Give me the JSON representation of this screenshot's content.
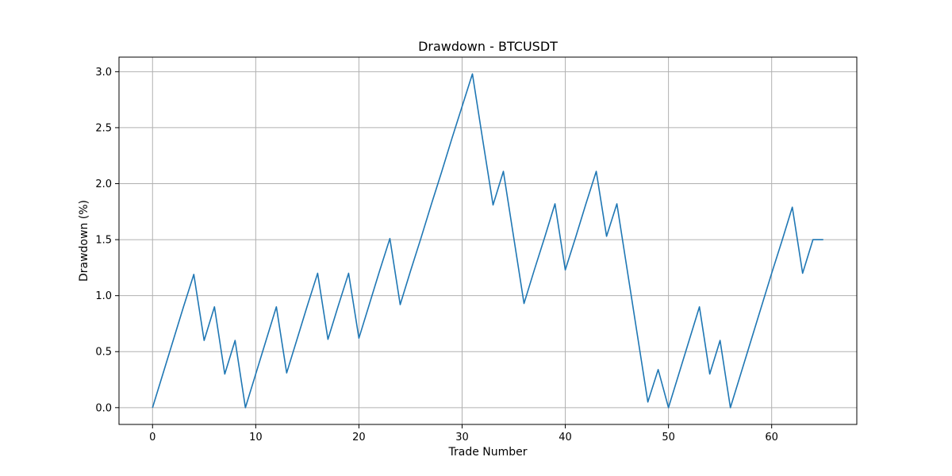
{
  "chart_data": {
    "type": "line",
    "title": "Drawdown - BTCUSDT",
    "xlabel": "Trade Number",
    "ylabel": "Drawdown (%)",
    "xlim": [
      -3.25,
      68.25
    ],
    "ylim": [
      -0.15,
      3.13
    ],
    "xticks": [
      0,
      10,
      20,
      30,
      40,
      50,
      60
    ],
    "yticks": [
      0.0,
      0.5,
      1.0,
      1.5,
      2.0,
      2.5,
      3.0
    ],
    "xtick_labels": [
      "0",
      "10",
      "20",
      "30",
      "40",
      "50",
      "60"
    ],
    "ytick_labels": [
      "0.0",
      "0.5",
      "1.0",
      "1.5",
      "2.0",
      "2.5",
      "3.0"
    ],
    "grid": true,
    "line_color": "#1f77b4",
    "grid_color": "#b0b0b0",
    "x": [
      0,
      1,
      2,
      3,
      4,
      5,
      6,
      7,
      8,
      9,
      10,
      11,
      12,
      13,
      14,
      15,
      16,
      17,
      18,
      19,
      20,
      21,
      22,
      23,
      24,
      25,
      26,
      27,
      28,
      29,
      30,
      31,
      32,
      33,
      34,
      35,
      36,
      37,
      38,
      39,
      40,
      41,
      42,
      43,
      44,
      45,
      46,
      47,
      48,
      49,
      50,
      51,
      52,
      53,
      54,
      55,
      56,
      57,
      58,
      59,
      60,
      61,
      62,
      63,
      64,
      65
    ],
    "values": [
      0.0,
      0.3,
      0.6,
      0.9,
      1.19,
      0.6,
      0.9,
      0.3,
      0.6,
      0.0,
      0.3,
      0.6,
      0.9,
      0.31,
      0.61,
      0.91,
      1.2,
      0.61,
      0.91,
      1.2,
      0.62,
      0.92,
      1.22,
      1.51,
      0.92,
      1.22,
      1.51,
      1.81,
      2.1,
      2.4,
      2.69,
      2.98,
      2.39,
      1.81,
      2.11,
      1.52,
      0.93,
      1.23,
      1.52,
      1.82,
      1.23,
      1.52,
      1.82,
      2.11,
      1.53,
      1.82,
      1.23,
      0.64,
      0.05,
      0.34,
      0.0,
      0.3,
      0.6,
      0.9,
      0.3,
      0.6,
      0.0,
      0.3,
      0.6,
      0.9,
      1.2,
      1.49,
      1.79,
      1.2,
      1.5,
      1.5
    ]
  }
}
